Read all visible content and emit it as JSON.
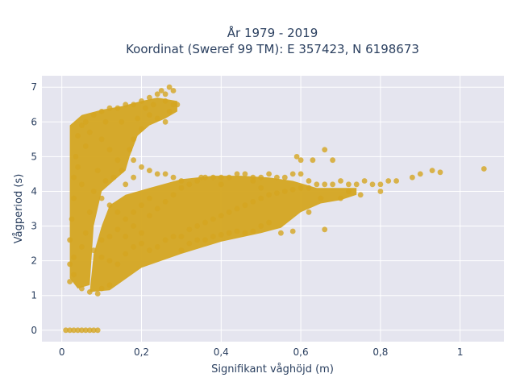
{
  "chart_data": {
    "type": "scatter",
    "title_line1": "År 1979 - 2019",
    "title_line2": "Koordinat (Sweref 99 TM): E 357423, N 6198673",
    "xlabel": "Signifikant våghöjd (m)",
    "ylabel": "Vågperiod (s)",
    "xlim": [
      -0.05,
      1.11
    ],
    "ylim": [
      -0.33,
      7.33
    ],
    "x_ticks": [
      0,
      0.2,
      0.4,
      0.6,
      0.8,
      1
    ],
    "x_tick_labels": [
      "0",
      "0,2",
      "0,4",
      "0,6",
      "0,8",
      "1"
    ],
    "y_ticks": [
      0,
      1,
      2,
      3,
      4,
      5,
      6,
      7
    ],
    "y_tick_labels": [
      "0",
      "1",
      "2",
      "3",
      "4",
      "5",
      "6",
      "7"
    ],
    "grid": true,
    "marker_color": "#d4a520",
    "plot_background": "#e5e5ef",
    "series": [
      {
        "label": "",
        "points": [
          [
            0.01,
            0
          ],
          [
            0.02,
            0
          ],
          [
            0.03,
            0
          ],
          [
            0.04,
            0
          ],
          [
            0.05,
            0
          ],
          [
            0.06,
            0
          ],
          [
            0.07,
            0
          ],
          [
            0.08,
            0
          ],
          [
            0.09,
            0
          ],
          [
            0.02,
            1.4
          ],
          [
            0.03,
            1.6
          ],
          [
            0.05,
            1.2
          ],
          [
            0.07,
            1.1
          ],
          [
            0.09,
            1.05
          ],
          [
            0.1,
            1.2
          ],
          [
            0.12,
            1.3
          ],
          [
            0.02,
            1.9
          ],
          [
            0.02,
            2.6
          ],
          [
            0.025,
            3.2
          ],
          [
            0.03,
            3.8
          ],
          [
            0.03,
            4.4
          ],
          [
            0.035,
            5.0
          ],
          [
            0.04,
            5.6
          ],
          [
            0.05,
            5.9
          ],
          [
            0.06,
            6.0
          ],
          [
            0.08,
            6.2
          ],
          [
            0.1,
            6.3
          ],
          [
            0.12,
            6.4
          ],
          [
            0.14,
            6.4
          ],
          [
            0.16,
            6.5
          ],
          [
            0.18,
            6.5
          ],
          [
            0.2,
            6.6
          ],
          [
            0.22,
            6.7
          ],
          [
            0.24,
            6.8
          ],
          [
            0.26,
            6.6
          ],
          [
            0.28,
            6.5
          ],
          [
            0.25,
            6.9
          ],
          [
            0.27,
            7.0
          ],
          [
            0.28,
            6.9
          ],
          [
            0.22,
            6.2
          ],
          [
            0.24,
            6.1
          ],
          [
            0.26,
            6.0
          ],
          [
            0.2,
            5.8
          ],
          [
            0.18,
            5.5
          ],
          [
            0.17,
            5.2
          ],
          [
            0.18,
            4.9
          ],
          [
            0.2,
            4.7
          ],
          [
            0.22,
            4.6
          ],
          [
            0.24,
            4.5
          ],
          [
            0.15,
            4.6
          ],
          [
            0.14,
            4.9
          ],
          [
            0.12,
            5.2
          ],
          [
            0.1,
            5.5
          ],
          [
            0.08,
            4.0
          ],
          [
            0.1,
            3.8
          ],
          [
            0.12,
            3.6
          ],
          [
            0.14,
            3.4
          ],
          [
            0.16,
            3.2
          ],
          [
            0.18,
            3.0
          ],
          [
            0.2,
            2.8
          ],
          [
            0.08,
            2.3
          ],
          [
            0.1,
            2.1
          ],
          [
            0.12,
            2.0
          ],
          [
            0.14,
            1.9
          ],
          [
            0.16,
            2.2
          ],
          [
            0.18,
            2.4
          ],
          [
            0.2,
            2.5
          ],
          [
            0.22,
            2.3
          ],
          [
            0.24,
            2.4
          ],
          [
            0.26,
            2.6
          ],
          [
            0.28,
            2.7
          ],
          [
            0.3,
            2.7
          ],
          [
            0.32,
            2.9
          ],
          [
            0.34,
            3.0
          ],
          [
            0.22,
            3.3
          ],
          [
            0.24,
            3.5
          ],
          [
            0.26,
            3.7
          ],
          [
            0.28,
            3.9
          ],
          [
            0.3,
            4.1
          ],
          [
            0.32,
            4.2
          ],
          [
            0.34,
            4.3
          ],
          [
            0.36,
            4.4
          ],
          [
            0.38,
            4.4
          ],
          [
            0.4,
            4.4
          ],
          [
            0.42,
            4.4
          ],
          [
            0.44,
            4.5
          ],
          [
            0.46,
            4.5
          ],
          [
            0.48,
            4.4
          ],
          [
            0.36,
            3.1
          ],
          [
            0.38,
            3.2
          ],
          [
            0.4,
            3.3
          ],
          [
            0.42,
            3.4
          ],
          [
            0.44,
            3.5
          ],
          [
            0.46,
            3.6
          ],
          [
            0.48,
            3.7
          ],
          [
            0.5,
            3.8
          ],
          [
            0.52,
            3.9
          ],
          [
            0.54,
            3.95
          ],
          [
            0.56,
            4.0
          ],
          [
            0.58,
            4.05
          ],
          [
            0.6,
            4.1
          ],
          [
            0.62,
            4.1
          ],
          [
            0.5,
            4.4
          ],
          [
            0.52,
            4.5
          ],
          [
            0.54,
            4.4
          ],
          [
            0.56,
            4.4
          ],
          [
            0.58,
            4.5
          ],
          [
            0.6,
            4.5
          ],
          [
            0.62,
            4.3
          ],
          [
            0.64,
            4.2
          ],
          [
            0.66,
            4.2
          ],
          [
            0.68,
            4.2
          ],
          [
            0.7,
            4.3
          ],
          [
            0.72,
            4.2
          ],
          [
            0.74,
            4.2
          ],
          [
            0.76,
            4.3
          ],
          [
            0.78,
            4.2
          ],
          [
            0.8,
            4.2
          ],
          [
            0.82,
            4.3
          ],
          [
            0.84,
            4.3
          ],
          [
            0.88,
            4.4
          ],
          [
            0.9,
            4.5
          ],
          [
            0.93,
            4.6
          ],
          [
            0.95,
            4.55
          ],
          [
            1.06,
            4.65
          ],
          [
            0.59,
            5.0
          ],
          [
            0.6,
            4.9
          ],
          [
            0.63,
            4.9
          ],
          [
            0.66,
            5.2
          ],
          [
            0.68,
            4.9
          ],
          [
            0.3,
            2.3
          ],
          [
            0.32,
            2.5
          ],
          [
            0.34,
            2.6
          ],
          [
            0.36,
            2.6
          ],
          [
            0.38,
            2.7
          ],
          [
            0.4,
            2.75
          ],
          [
            0.42,
            2.8
          ],
          [
            0.44,
            2.85
          ],
          [
            0.46,
            2.8
          ],
          [
            0.48,
            2.85
          ],
          [
            0.5,
            3.0
          ],
          [
            0.52,
            3.1
          ],
          [
            0.55,
            2.8
          ],
          [
            0.58,
            2.85
          ],
          [
            0.62,
            3.4
          ],
          [
            0.65,
            3.8
          ],
          [
            0.66,
            2.9
          ],
          [
            0.7,
            3.8
          ],
          [
            0.72,
            4.0
          ],
          [
            0.75,
            3.9
          ],
          [
            0.8,
            4.0
          ],
          [
            0.48,
            4.3
          ],
          [
            0.5,
            4.1
          ],
          [
            0.4,
            4.2
          ],
          [
            0.35,
            4.4
          ],
          [
            0.3,
            4.3
          ],
          [
            0.28,
            4.4
          ],
          [
            0.26,
            4.5
          ],
          [
            0.05,
            2.4
          ],
          [
            0.06,
            2.8
          ],
          [
            0.07,
            3.4
          ],
          [
            0.05,
            4.2
          ],
          [
            0.04,
            4.7
          ],
          [
            0.06,
            5.3
          ],
          [
            0.03,
            2.1
          ],
          [
            0.1,
            2.6
          ],
          [
            0.12,
            2.7
          ],
          [
            0.14,
            2.9
          ],
          [
            0.16,
            2.7
          ],
          [
            0.18,
            3.4
          ],
          [
            0.2,
            3.6
          ],
          [
            0.22,
            3.8
          ],
          [
            0.16,
            4.2
          ],
          [
            0.18,
            4.4
          ],
          [
            0.13,
            4.4
          ],
          [
            0.11,
            4.3
          ],
          [
            0.09,
            4.6
          ],
          [
            0.07,
            5.7
          ],
          [
            0.11,
            6.0
          ],
          [
            0.15,
            6.0
          ],
          [
            0.19,
            6.1
          ],
          [
            0.21,
            6.4
          ],
          [
            0.23,
            6.5
          ],
          [
            0.27,
            6.3
          ],
          [
            0.29,
            6.5
          ],
          [
            0.26,
            6.8
          ]
        ],
        "bands": [
          {
            "type": "poly",
            "pts": [
              [
                0.02,
                1.5
              ],
              [
                0.02,
                5.9
              ],
              [
                0.05,
                6.2
              ],
              [
                0.1,
                6.35
              ],
              [
                0.15,
                6.45
              ],
              [
                0.2,
                6.6
              ],
              [
                0.24,
                6.7
              ],
              [
                0.29,
                6.6
              ],
              [
                0.29,
                6.3
              ],
              [
                0.26,
                6.1
              ],
              [
                0.22,
                5.9
              ],
              [
                0.19,
                5.6
              ],
              [
                0.17,
                5.0
              ],
              [
                0.16,
                4.6
              ],
              [
                0.13,
                4.3
              ],
              [
                0.1,
                4.0
              ],
              [
                0.08,
                3.0
              ],
              [
                0.07,
                1.3
              ],
              [
                0.04,
                1.2
              ]
            ]
          },
          {
            "type": "poly",
            "pts": [
              [
                0.07,
                1.1
              ],
              [
                0.12,
                1.15
              ],
              [
                0.2,
                1.8
              ],
              [
                0.3,
                2.2
              ],
              [
                0.4,
                2.55
              ],
              [
                0.5,
                2.8
              ],
              [
                0.55,
                2.95
              ],
              [
                0.6,
                3.4
              ],
              [
                0.65,
                3.65
              ],
              [
                0.7,
                3.75
              ],
              [
                0.74,
                3.9
              ],
              [
                0.74,
                4.1
              ],
              [
                0.64,
                4.1
              ],
              [
                0.58,
                4.3
              ],
              [
                0.52,
                4.4
              ],
              [
                0.45,
                4.45
              ],
              [
                0.38,
                4.45
              ],
              [
                0.3,
                4.35
              ],
              [
                0.22,
                4.1
              ],
              [
                0.16,
                3.9
              ],
              [
                0.12,
                3.6
              ],
              [
                0.1,
                3.0
              ],
              [
                0.08,
                2.2
              ]
            ]
          }
        ]
      }
    ]
  }
}
